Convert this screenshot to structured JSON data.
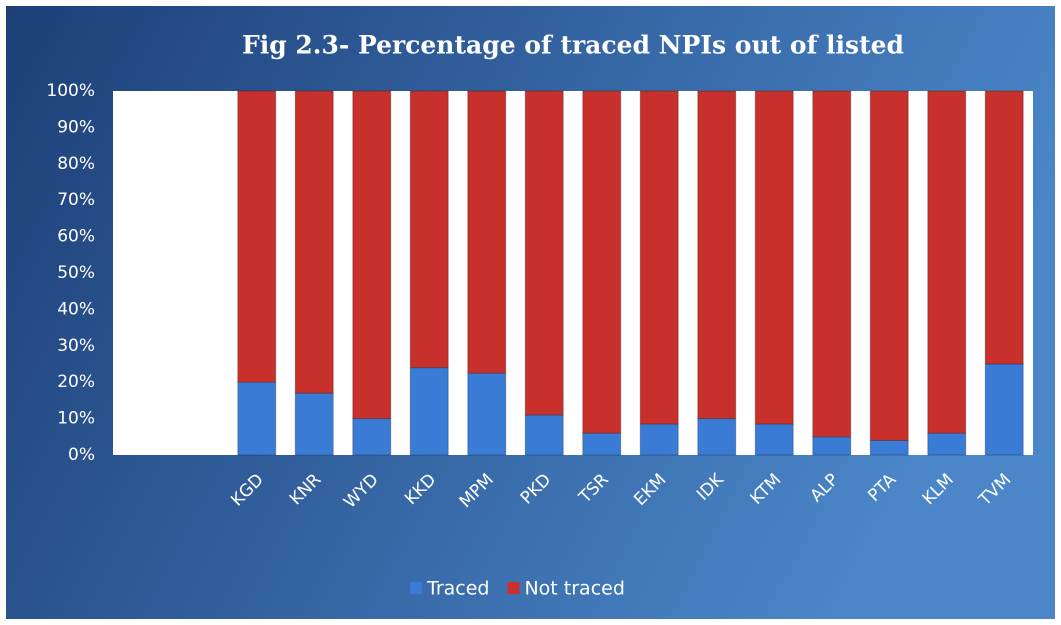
{
  "chart_data": {
    "type": "stacked_bar",
    "title": "Fig 2.3- Percentage of traced NPIs out of listed",
    "categories": [
      null,
      null,
      "KGD",
      "KNR",
      "WYD",
      "KKD",
      "MPM",
      "PKD",
      "TSR",
      "EKM",
      "IDK",
      "KTM",
      "ALP",
      "PTA",
      "KLM",
      "TVM"
    ],
    "series": [
      {
        "name": "Traced",
        "color": "#3a7bd5",
        "values": [
          null,
          null,
          20,
          17,
          10,
          24,
          22.5,
          11,
          6,
          8.5,
          10,
          8.5,
          5,
          4,
          6,
          25
        ]
      },
      {
        "name": "Not traced",
        "color": "#c8302c",
        "values": [
          null,
          null,
          80,
          83,
          90,
          76,
          77.5,
          89,
          94,
          91.5,
          90,
          91.5,
          95,
          96,
          94,
          75
        ]
      }
    ],
    "ylim": [
      0,
      100
    ],
    "yticks": [
      {
        "value": 0,
        "label": "0%"
      },
      {
        "value": 10,
        "label": "10%"
      },
      {
        "value": 20,
        "label": "20%"
      },
      {
        "value": 30,
        "label": "30%"
      },
      {
        "value": 40,
        "label": "40%"
      },
      {
        "value": 50,
        "label": "50%"
      },
      {
        "value": 60,
        "label": "60%"
      },
      {
        "value": 70,
        "label": "70%"
      },
      {
        "value": 80,
        "label": "80%"
      },
      {
        "value": 90,
        "label": "90%"
      },
      {
        "value": 100,
        "label": "100%"
      }
    ],
    "grid": false,
    "legend": "bottom"
  }
}
